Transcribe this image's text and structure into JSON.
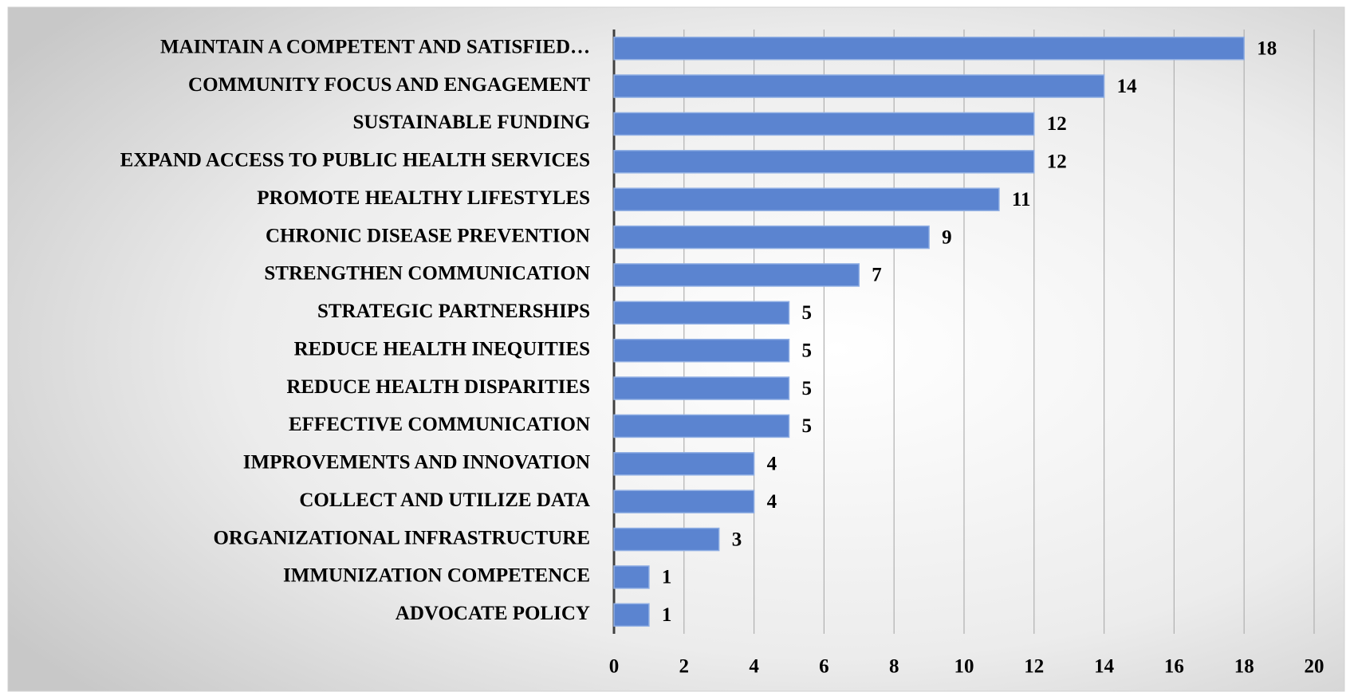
{
  "chart_data": {
    "type": "bar",
    "orientation": "horizontal",
    "categories": [
      "MAINTAIN A COMPETENT AND SATISFIED…",
      "COMMUNITY FOCUS AND ENGAGEMENT",
      "SUSTAINABLE FUNDING",
      "EXPAND ACCESS TO PUBLIC HEALTH SERVICES",
      "PROMOTE HEALTHY LIFESTYLES",
      "CHRONIC DISEASE PREVENTION",
      "STRENGTHEN COMMUNICATION",
      "STRATEGIC PARTNERSHIPS",
      "REDUCE HEALTH INEQUITIES",
      "REDUCE HEALTH DISPARITIES",
      "EFFECTIVE COMMUNICATION",
      "IMPROVEMENTS AND INNOVATION",
      "COLLECT AND UTILIZE DATA",
      "ORGANIZATIONAL INFRASTRUCTURE",
      "IMMUNIZATION COMPETENCE",
      "ADVOCATE POLICY"
    ],
    "values": [
      18,
      14,
      12,
      12,
      11,
      9,
      7,
      5,
      5,
      5,
      5,
      4,
      4,
      3,
      1,
      1
    ],
    "color": "#5b84d0",
    "xlim": [
      0,
      20
    ],
    "xticks": [
      0,
      2,
      4,
      6,
      8,
      10,
      12,
      14,
      16,
      18,
      20
    ],
    "grid": true
  }
}
